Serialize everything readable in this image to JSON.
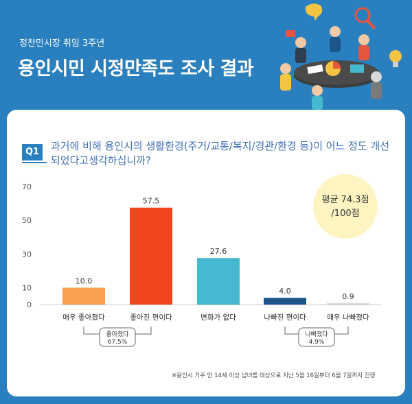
{
  "header": {
    "subtitle": "정찬민시장 취임 3주년",
    "title": "용인시민 시정만족도 조사 결과"
  },
  "question": {
    "badge": "Q1",
    "text": "과거에 비해 용인시의 생활환경(주거/교통/복지/경관/환경 등)이 어느 정도 개선되었다고생각하십니까?"
  },
  "average": {
    "line1": "평균 74.3점",
    "line2": "/100점"
  },
  "chart_data": {
    "type": "bar",
    "categories": [
      "매우 좋아졌다",
      "좋아진 편이다",
      "변화가 없다",
      "나빠진 편이다",
      "매우 나빠졌다"
    ],
    "values": [
      10.0,
      57.5,
      27.6,
      4.0,
      0.9
    ],
    "value_labels": [
      "10.0",
      "57.5",
      "27.6",
      "4.0",
      "0.9"
    ],
    "colors": [
      "#f9a150",
      "#f2441d",
      "#44b9d0",
      "#1c5588",
      "#d9dcdf"
    ],
    "ylim": [
      0,
      70
    ],
    "yticks": [
      "0",
      "10",
      "30",
      "50",
      "70"
    ],
    "ytick_values": [
      0,
      10,
      30,
      50,
      70
    ],
    "grid": false,
    "groups": [
      {
        "label": "좋아졌다",
        "value": "67.5%",
        "from": 0,
        "to": 1
      },
      {
        "label": "나빠졌다",
        "value": "4.9%",
        "from": 3,
        "to": 4
      }
    ]
  },
  "footnote": "※용인시 거주 만 14세 이상 남녀를 대상으로 지난 5월 16일부터 6월 7일까지 진행"
}
